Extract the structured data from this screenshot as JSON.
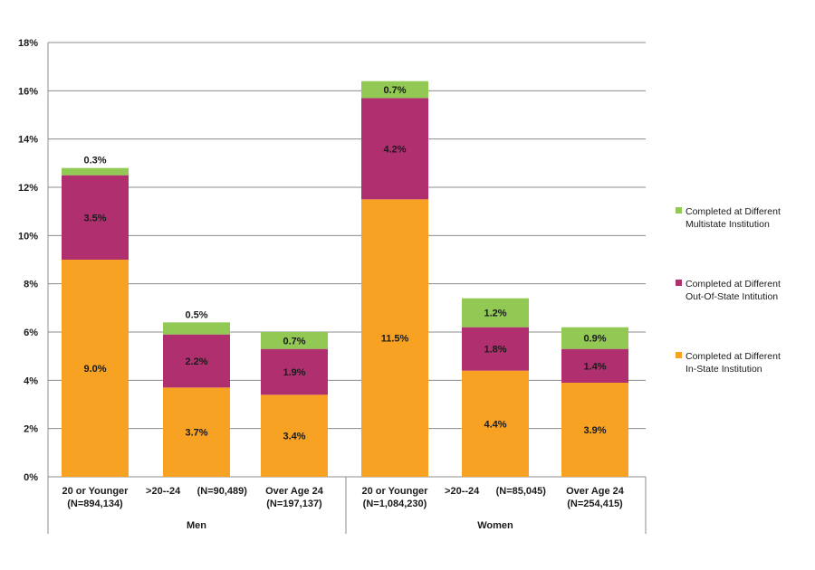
{
  "chart_data": {
    "type": "bar",
    "stacked": true,
    "title": "",
    "xlabel": "",
    "ylabel": "",
    "ylim": [
      0,
      18
    ],
    "y_ticks": [
      "0%",
      "2%",
      "4%",
      "6%",
      "8%",
      "10%",
      "12%",
      "14%",
      "16%",
      "18%"
    ],
    "grid": true,
    "legend_position": "right",
    "groups": [
      {
        "label": "Men",
        "categories": [
          {
            "line1": "20 or Younger",
            "line2": "(N=894,134)"
          },
          {
            "line1": ">20--24      (N=90,489)",
            "line2": ""
          },
          {
            "line1": "Over Age 24",
            "line2": "(N=197,137)"
          }
        ]
      },
      {
        "label": "Women",
        "categories": [
          {
            "line1": "20 or Younger",
            "line2": "(N=1,084,230)"
          },
          {
            "line1": ">20--24      (N=85,045)",
            "line2": ""
          },
          {
            "line1": "Over Age 24",
            "line2": "(N=254,415)"
          }
        ]
      }
    ],
    "series": [
      {
        "name": "Completed at Different In-State Institution",
        "legend_lines": [
          "Completed at Different",
          "In-State Institution"
        ],
        "color": "#F7A223",
        "values": [
          9.0,
          3.7,
          3.4,
          11.5,
          4.4,
          3.9
        ],
        "labels": [
          "9.0%",
          "3.7%",
          "3.4%",
          "11.5%",
          "4.4%",
          "3.9%"
        ]
      },
      {
        "name": "Completed at Different Out-Of-State Intitution",
        "legend_lines": [
          "Completed at Different",
          "Out-Of-State Intitution"
        ],
        "color": "#B0306F",
        "values": [
          3.5,
          2.2,
          1.9,
          4.2,
          1.8,
          1.4
        ],
        "labels": [
          "3.5%",
          "2.2%",
          "1.9%",
          "4.2%",
          "1.8%",
          "1.4%"
        ]
      },
      {
        "name": "Completed at Different Multistate Institution",
        "legend_lines": [
          "Completed at Different",
          "Multistate Institution"
        ],
        "color": "#92C955",
        "values": [
          0.3,
          0.5,
          0.7,
          0.7,
          1.2,
          0.9
        ],
        "labels": [
          "0.3%",
          "0.5%",
          "0.7%",
          "0.7%",
          "1.2%",
          "0.9%"
        ]
      }
    ]
  }
}
